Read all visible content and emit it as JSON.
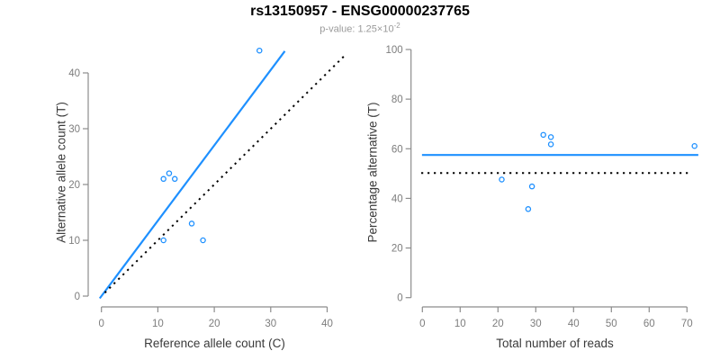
{
  "header": {
    "title": "rs13150957 - ENSG00000237765",
    "p_value_prefix": "p-value: 1.25×10",
    "p_value_exponent": "-2"
  },
  "colors": {
    "accent_blue": "#1E90FF",
    "reference_line": "#000000",
    "axis_line": "#8c8c8c",
    "tick_label": "#7d7d7d",
    "axis_title": "#3a3a3a",
    "title": "#000000",
    "subtitle": "#9a9a9a",
    "point_stroke": "#1E90FF"
  },
  "chart_data": [
    {
      "name": "allele-counts-scatter",
      "type": "scatter",
      "xlabel": "Reference allele count (C)",
      "ylabel": "Alternative allele count (T)",
      "x_ticks": [
        0,
        10,
        20,
        30,
        40
      ],
      "y_ticks": [
        0,
        10,
        20,
        30,
        40
      ],
      "xlim": [
        -1.5,
        44
      ],
      "ylim": [
        -1.9,
        45.5
      ],
      "grid": false,
      "legend": false,
      "points": [
        [
          11,
          21
        ],
        [
          12,
          22
        ],
        [
          13,
          21
        ],
        [
          16,
          13
        ],
        [
          11,
          10
        ],
        [
          18,
          10
        ],
        [
          28,
          44
        ]
      ],
      "lines": [
        {
          "name": "fitted-ratio-line",
          "style": "solid",
          "color_key": "accent_blue",
          "x1": -0.3,
          "y1": -0.4,
          "x2": 32.5,
          "y2": 43.9
        },
        {
          "name": "identity-line",
          "style": "dotted",
          "color_key": "reference_line",
          "x1": 0.6,
          "y1": 0.6,
          "x2": 43.4,
          "y2": 43.4
        }
      ]
    },
    {
      "name": "percentage-by-coverage-scatter",
      "type": "scatter",
      "xlabel": "Total number of reads",
      "ylabel": "Percentage alternative (T)",
      "x_ticks": [
        0,
        10,
        20,
        30,
        40,
        50,
        60,
        70
      ],
      "y_ticks": [
        0,
        20,
        40,
        60,
        80,
        100
      ],
      "xlim": [
        -0.5,
        73.5
      ],
      "ylim": [
        0,
        100
      ],
      "grid": false,
      "legend": false,
      "points": [
        [
          21,
          47.6
        ],
        [
          28,
          35.7
        ],
        [
          29,
          44.8
        ],
        [
          32,
          65.6
        ],
        [
          34,
          64.7
        ],
        [
          34,
          61.8
        ],
        [
          72,
          61.1
        ]
      ],
      "lines": [
        {
          "name": "mean-percentage-line",
          "style": "solid",
          "color_key": "accent_blue",
          "x1": -0.1,
          "y1": 57.5,
          "x2": 73.0,
          "y2": 57.5
        },
        {
          "name": "fifty-percent-line",
          "style": "dotted",
          "color_key": "reference_line",
          "x1": -0.3,
          "y1": 50.2,
          "x2": 71.2,
          "y2": 50.2
        }
      ]
    }
  ]
}
